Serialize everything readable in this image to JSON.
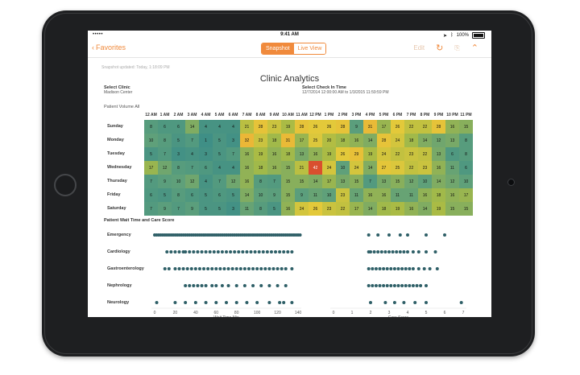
{
  "statusbar": {
    "carrier": "•••••",
    "time": "9:41 AM",
    "battery": "100%"
  },
  "navbar": {
    "back_label": "Favorites",
    "segment_snapshot": "Snapshot",
    "segment_live": "Live View",
    "edit_label": "Edit",
    "icons": [
      "refresh-icon",
      "share-icon",
      "collapse-icon"
    ]
  },
  "snapshot_updated": "Snapshot updated: Today, 1:18:09 PM",
  "title": "Clinic Analytics",
  "select_clinic": {
    "label": "Select Clinic",
    "value": "Madison Center"
  },
  "select_time": {
    "label": "Select Check In Time",
    "value": "12/7/2014 12:00:00 AM to 1/3/2015 11:59:59 PM"
  },
  "patient_volume": "Patient Volume  All",
  "hours": [
    "12 AM",
    "1 AM",
    "2 AM",
    "3 AM",
    "4 AM",
    "5 AM",
    "6 AM",
    "7 AM",
    "8 AM",
    "9 AM",
    "10 AM",
    "11 AM",
    "12 PM",
    "1 PM",
    "2 PM",
    "3 PM",
    "4 PM",
    "5 PM",
    "6 PM",
    "7 PM",
    "8 PM",
    "9 PM",
    "10 PM",
    "11 PM"
  ],
  "days": [
    "Sunday",
    "Monday",
    "Tuesday",
    "Wednesday",
    "Thursday",
    "Friday",
    "Saturday"
  ],
  "heatmap": [
    [
      8,
      6,
      6,
      14,
      4,
      4,
      4,
      21,
      28,
      23,
      19,
      28,
      26,
      26,
      28,
      9,
      31,
      17,
      26,
      22,
      22,
      28,
      16,
      15
    ],
    [
      10,
      8,
      5,
      7,
      1,
      5,
      3,
      32,
      23,
      18,
      31,
      17,
      25,
      20,
      18,
      16,
      14,
      28,
      24,
      18,
      14,
      12,
      13,
      8
    ],
    [
      5,
      7,
      3,
      4,
      3,
      5,
      7,
      16,
      19,
      16,
      18,
      13,
      16,
      19,
      26,
      29,
      19,
      24,
      22,
      23,
      22,
      13,
      6,
      8
    ],
    [
      17,
      12,
      8,
      7,
      6,
      4,
      4,
      16,
      18,
      16,
      15,
      21,
      42,
      24,
      10,
      24,
      14,
      27,
      25,
      22,
      23,
      16,
      11,
      6
    ],
    [
      7,
      9,
      10,
      12,
      4,
      7,
      12,
      16,
      8,
      7,
      15,
      15,
      14,
      17,
      13,
      15,
      7,
      13,
      15,
      12,
      10,
      14,
      12,
      10
    ],
    [
      6,
      5,
      8,
      6,
      5,
      6,
      5,
      14,
      10,
      9,
      15,
      9,
      11,
      10,
      23,
      11,
      16,
      16,
      11,
      11,
      16,
      18,
      16,
      17
    ],
    [
      7,
      9,
      7,
      9,
      5,
      5,
      3,
      11,
      8,
      5,
      16,
      24,
      26,
      23,
      22,
      17,
      14,
      18,
      19,
      16,
      14,
      19,
      15,
      15
    ]
  ],
  "wait_section_title": "Patient Wait Time and Care Score",
  "departments": [
    "Emergency",
    "Cardiology",
    "Gastroenterology",
    "Nephrology",
    "Neurology"
  ],
  "wait_axis": {
    "label": "Wait Time Min",
    "ticks": [
      "0",
      "20",
      "40",
      "60",
      "80",
      "100",
      "120",
      "140"
    ]
  },
  "care_axis": {
    "label": "Care Score",
    "ticks": [
      "0",
      "1",
      "2",
      "3",
      "4",
      "5",
      "6",
      "7"
    ]
  },
  "wait_data": [
    [
      0,
      2,
      4,
      6,
      8,
      10,
      12,
      14,
      16,
      18,
      20,
      22,
      24,
      26,
      28,
      30,
      32,
      34,
      36,
      38,
      40,
      42,
      44,
      46,
      48,
      50,
      52,
      54,
      56,
      58,
      60,
      62,
      64,
      66,
      68,
      70,
      72,
      74,
      76,
      78,
      80,
      82,
      84,
      86,
      88,
      90,
      92,
      94,
      96,
      98,
      100,
      102,
      104,
      106,
      108,
      110,
      112,
      114,
      116,
      118,
      120,
      122,
      124,
      126,
      128,
      130,
      132,
      134,
      136,
      138,
      140,
      142
    ],
    [
      12,
      16,
      20,
      24,
      28,
      30,
      34,
      38,
      42,
      46,
      50,
      54,
      58,
      62,
      66,
      70,
      74,
      78,
      82,
      86,
      90,
      94,
      98,
      102,
      106,
      110,
      114,
      118,
      122,
      126,
      130,
      134
    ],
    [
      10,
      14,
      20,
      24,
      28,
      32,
      36,
      40,
      44,
      48,
      52,
      56,
      60,
      64,
      68,
      72,
      76,
      80,
      84,
      88,
      92,
      96,
      100,
      104,
      108,
      112,
      116,
      120,
      124,
      128,
      134
    ],
    [
      30,
      34,
      38,
      42,
      46,
      50,
      56,
      60,
      66,
      72,
      80,
      88,
      96,
      104,
      112,
      120,
      128
    ],
    [
      2,
      20,
      30,
      40,
      50,
      60,
      70,
      80,
      90,
      100,
      112,
      122,
      126,
      134
    ]
  ],
  "care_data": [
    [
      1.9,
      2.4,
      3.0,
      3.6,
      4.0,
      5.0,
      6.0
    ],
    [
      1.9,
      2.0,
      2.2,
      2.4,
      2.6,
      2.8,
      3.0,
      3.2,
      3.4,
      3.6,
      3.8,
      4.0,
      4.3,
      4.6,
      5.0,
      5.5
    ],
    [
      1.9,
      2.1,
      2.3,
      2.5,
      2.7,
      2.9,
      3.1,
      3.3,
      3.5,
      3.7,
      3.9,
      4.1,
      4.3,
      4.6,
      4.9,
      5.2,
      5.6
    ],
    [
      1.9,
      2.1,
      2.3,
      2.5,
      2.7,
      2.9,
      3.1,
      3.3,
      3.5,
      3.7,
      3.9,
      4.1,
      4.3,
      4.5,
      4.7,
      5.0
    ],
    [
      2.0,
      2.8,
      3.3,
      3.8,
      4.4,
      5.0,
      6.9
    ]
  ],
  "colors": {
    "accent": "#f08a3c",
    "dot": "#2e5f67",
    "high": "#d94f2e",
    "low": "#3f8f86",
    "mid": "#e3c93a"
  }
}
